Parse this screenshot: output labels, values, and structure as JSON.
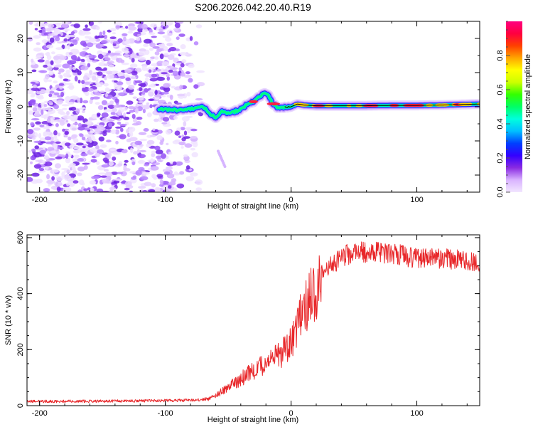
{
  "figure": {
    "title": "S206.2026.042.20.40.R19"
  },
  "chart_data": [
    {
      "type": "heatmap",
      "name": "spectrogram",
      "title": "S206.2026.042.20.40.R19",
      "xlabel": "Height of straight line (km)",
      "ylabel": "Frequency (Hz)",
      "xlim": [
        -210,
        150
      ],
      "ylim": [
        -25,
        25
      ],
      "xticks": [
        -200,
        -100,
        0,
        100
      ],
      "xtick_labels": [
        "-200",
        "-100",
        "0",
        "100"
      ],
      "yticks": [
        -20,
        -10,
        0,
        10,
        20
      ],
      "ytick_labels": [
        "-20",
        "-10",
        "0",
        "10",
        "20"
      ],
      "noise_region_x": [
        -210,
        -75
      ],
      "ridge": {
        "x": [
          -105,
          -95,
          -85,
          -75,
          -70,
          -65,
          -60,
          -55,
          -50,
          -45,
          -40,
          -35,
          -30,
          -25,
          -22,
          -18,
          -15,
          -10,
          -5,
          0,
          5,
          10,
          20,
          40,
          60,
          80,
          100,
          120,
          150
        ],
        "freq": [
          -0.8,
          -0.8,
          -1.0,
          -0.5,
          0.0,
          -2.0,
          -3.0,
          -1.2,
          -2.0,
          -1.5,
          -0.8,
          0.5,
          1.5,
          3.0,
          4.0,
          3.2,
          1.2,
          -0.5,
          -0.3,
          0.0,
          0.8,
          0.5,
          0.3,
          0.3,
          0.3,
          0.4,
          0.4,
          0.5,
          0.8
        ]
      },
      "colorbar": {
        "label": "Normalized spectral amplitude",
        "range": [
          0,
          1
        ],
        "ticks": [
          0.0,
          0.2,
          0.4,
          0.6,
          0.8
        ],
        "tick_labels": [
          "0.0",
          "0.2",
          "0.4",
          "0.6",
          "0.8"
        ],
        "colors": [
          "#f2e6ff",
          "#d9b3ff",
          "#8a2be2",
          "#3300ff",
          "#0040ff",
          "#00bfff",
          "#00ffdd",
          "#00ff66",
          "#33ff00",
          "#ccff00",
          "#ffff00",
          "#ffa500",
          "#ff4000",
          "#ff0040",
          "#ff0080"
        ]
      }
    },
    {
      "type": "line",
      "name": "snr",
      "xlabel": "Height of straight line (km)",
      "ylabel": "SNR (10 * v/v)",
      "xlim": [
        -210,
        150
      ],
      "ylim": [
        0,
        610
      ],
      "xticks": [
        -200,
        -100,
        0,
        100
      ],
      "xtick_labels": [
        "-200",
        "-100",
        "0",
        "100"
      ],
      "yticks": [
        0,
        200,
        400,
        600
      ],
      "ytick_labels": [
        "0",
        "200",
        "400",
        "600"
      ],
      "line_color": "#e8272a",
      "trend": {
        "x": [
          -210,
          -150,
          -100,
          -75,
          -65,
          -50,
          -35,
          -20,
          -10,
          0,
          10,
          20,
          30,
          45,
          60,
          80,
          100,
          120,
          140,
          150
        ],
        "y": [
          15,
          16,
          18,
          20,
          25,
          65,
          110,
          150,
          175,
          230,
          345,
          420,
          500,
          540,
          550,
          545,
          525,
          525,
          520,
          510
        ]
      }
    }
  ]
}
